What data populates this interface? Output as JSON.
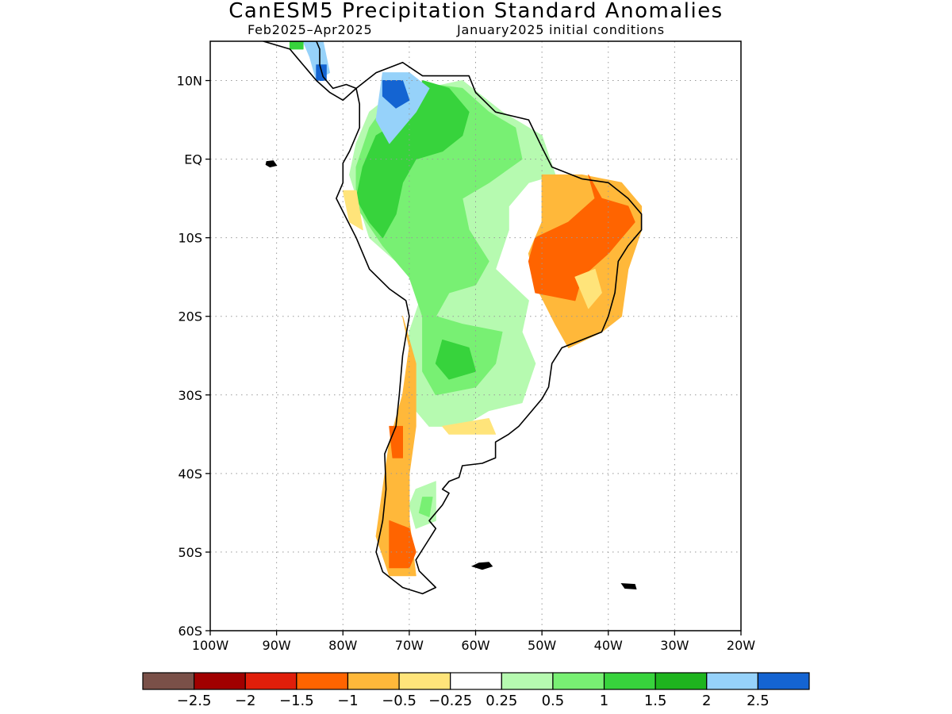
{
  "title": "CanESM5 Precipitation Standard Anomalies",
  "subtitle_left": "Feb2025–Apr2025",
  "subtitle_right": "January2025 initial conditions",
  "map": {
    "lon_range": [
      -100,
      -20
    ],
    "lat_range": [
      -60,
      15
    ],
    "lat_ticks": [
      {
        "value": 10,
        "label": "10N"
      },
      {
        "value": 0,
        "label": "EQ"
      },
      {
        "value": -10,
        "label": "10S"
      },
      {
        "value": -20,
        "label": "20S"
      },
      {
        "value": -30,
        "label": "30S"
      },
      {
        "value": -40,
        "label": "40S"
      },
      {
        "value": -50,
        "label": "50S"
      },
      {
        "value": -60,
        "label": "60S"
      }
    ],
    "lon_ticks": [
      {
        "value": -100,
        "label": "100W"
      },
      {
        "value": -90,
        "label": "90W"
      },
      {
        "value": -80,
        "label": "80W"
      },
      {
        "value": -70,
        "label": "70W"
      },
      {
        "value": -60,
        "label": "60W"
      },
      {
        "value": -50,
        "label": "50W"
      },
      {
        "value": -40,
        "label": "40W"
      },
      {
        "value": -30,
        "label": "30W"
      },
      {
        "value": -20,
        "label": "20W"
      }
    ],
    "grid": true
  },
  "colorbar": {
    "colors": [
      "#7a5048",
      "#a10000",
      "#e01e0a",
      "#ff6400",
      "#ffb83a",
      "#ffe47a",
      "#ffffff",
      "#b6fab0",
      "#78f073",
      "#37d33c",
      "#1eb41e",
      "#96d2fa",
      "#1464d2"
    ],
    "labels": [
      "−2.5",
      "−2",
      "−1.5",
      "−1",
      "−0.5",
      "−0.25",
      "0.25",
      "0.5",
      "1",
      "1.5",
      "2",
      "2.5"
    ]
  },
  "anomaly_regions": [
    {
      "level": 0.5,
      "color": "#b6fab0",
      "lonlat": [
        [
          -73,
          8
        ],
        [
          -62,
          10
        ],
        [
          -56,
          6
        ],
        [
          -50,
          3
        ],
        [
          -48,
          -2
        ],
        [
          -52,
          -3
        ],
        [
          -55,
          -6
        ],
        [
          -55,
          -9
        ],
        [
          -57,
          -14
        ],
        [
          -52,
          -18
        ],
        [
          -53,
          -22
        ],
        [
          -51,
          -26
        ],
        [
          -53,
          -31
        ],
        [
          -58,
          -32
        ],
        [
          -62,
          -34
        ],
        [
          -67,
          -34
        ],
        [
          -70,
          -31
        ],
        [
          -70,
          -22
        ],
        [
          -68,
          -17
        ],
        [
          -72,
          -13
        ],
        [
          -76,
          -10
        ],
        [
          -79,
          -2
        ],
        [
          -78,
          2
        ],
        [
          -76,
          6
        ]
      ]
    },
    {
      "level": 1.0,
      "color": "#78f073",
      "lonlat": [
        [
          -71,
          10
        ],
        [
          -62,
          9
        ],
        [
          -58,
          6
        ],
        [
          -54,
          4
        ],
        [
          -53,
          0
        ],
        [
          -58,
          -3
        ],
        [
          -62,
          -5
        ],
        [
          -61,
          -9
        ],
        [
          -58,
          -13
        ],
        [
          -60,
          -16
        ],
        [
          -64,
          -17
        ],
        [
          -66,
          -20
        ],
        [
          -62,
          -21
        ],
        [
          -56,
          -22
        ],
        [
          -57,
          -26
        ],
        [
          -60,
          -29
        ],
        [
          -66,
          -30
        ],
        [
          -68,
          -27
        ],
        [
          -68,
          -20
        ],
        [
          -70,
          -15
        ],
        [
          -74,
          -11
        ],
        [
          -78,
          -6
        ],
        [
          -78,
          -1
        ],
        [
          -76,
          4
        ]
      ]
    },
    {
      "level": 1.5,
      "color": "#37d33c",
      "lonlat": [
        [
          -68,
          10
        ],
        [
          -64,
          9
        ],
        [
          -61,
          6
        ],
        [
          -62,
          3
        ],
        [
          -65,
          1
        ],
        [
          -69,
          0
        ],
        [
          -71,
          -3
        ],
        [
          -72,
          -7
        ],
        [
          -74,
          -10
        ],
        [
          -76,
          -8
        ],
        [
          -78,
          -5
        ],
        [
          -77,
          -1
        ],
        [
          -75,
          3
        ],
        [
          -71,
          5
        ],
        [
          -69,
          7
        ]
      ]
    },
    {
      "level": 1.5,
      "color": "#37d33c",
      "lonlat": [
        [
          -65,
          -23
        ],
        [
          -61,
          -24
        ],
        [
          -60,
          -27
        ],
        [
          -64,
          -28
        ],
        [
          -66,
          -26
        ]
      ]
    },
    {
      "level": 0.5,
      "color": "#b6fab0",
      "lonlat": [
        [
          -69,
          -42
        ],
        [
          -66,
          -41
        ],
        [
          -66,
          -46
        ],
        [
          -69,
          -47
        ],
        [
          -70,
          -44
        ]
      ]
    },
    {
      "level": 1.0,
      "color": "#78f073",
      "lonlat": [
        [
          -68,
          -43
        ],
        [
          -66.5,
          -43
        ],
        [
          -67,
          -45.5
        ],
        [
          -68.5,
          -45
        ]
      ]
    },
    {
      "level": 2.0,
      "color": "#96d2fa",
      "lonlat": [
        [
          -74,
          11
        ],
        [
          -70,
          11
        ],
        [
          -67,
          9
        ],
        [
          -69,
          6
        ],
        [
          -71,
          4
        ],
        [
          -73,
          2
        ],
        [
          -75,
          5
        ]
      ]
    },
    {
      "level": 2.5,
      "color": "#1464d2",
      "lonlat": [
        [
          -74,
          10
        ],
        [
          -71,
          10
        ],
        [
          -70,
          7.5
        ],
        [
          -72,
          6.5
        ],
        [
          -74,
          8
        ]
      ]
    },
    {
      "level": 2.0,
      "color": "#96d2fa",
      "lonlat": [
        [
          -86,
          15
        ],
        [
          -83,
          15
        ],
        [
          -82,
          11
        ],
        [
          -84,
          10
        ],
        [
          -85,
          13
        ]
      ]
    },
    {
      "level": 2.5,
      "color": "#1464d2",
      "lonlat": [
        [
          -84,
          12
        ],
        [
          -82.5,
          12
        ],
        [
          -82.5,
          10
        ],
        [
          -84,
          10
        ]
      ]
    },
    {
      "level": 1.5,
      "color": "#37d33c",
      "lonlat": [
        [
          -88,
          15
        ],
        [
          -86,
          15
        ],
        [
          -86,
          14
        ],
        [
          -88,
          14
        ]
      ]
    },
    {
      "level": -0.5,
      "color": "#ffb83a",
      "lonlat": [
        [
          -50,
          -2
        ],
        [
          -44,
          -2
        ],
        [
          -38,
          -3
        ],
        [
          -35,
          -6
        ],
        [
          -35,
          -9
        ],
        [
          -37,
          -14
        ],
        [
          -38,
          -20
        ],
        [
          -41,
          -22
        ],
        [
          -46,
          -24
        ],
        [
          -48,
          -21
        ],
        [
          -51,
          -16
        ],
        [
          -52,
          -12
        ],
        [
          -50,
          -8
        ],
        [
          -50,
          -4
        ]
      ]
    },
    {
      "level": -1.0,
      "color": "#ff6400",
      "lonlat": [
        [
          -43,
          -2
        ],
        [
          -42,
          -5
        ],
        [
          -46,
          -8
        ],
        [
          -51,
          -10
        ],
        [
          -52,
          -13
        ],
        [
          -51,
          -17
        ],
        [
          -45,
          -18
        ],
        [
          -44,
          -15
        ],
        [
          -40,
          -12
        ],
        [
          -38,
          -10
        ],
        [
          -36,
          -8
        ],
        [
          -37,
          -6
        ],
        [
          -41,
          -5
        ]
      ]
    },
    {
      "level": -0.25,
      "color": "#ffe47a",
      "lonlat": [
        [
          -45,
          -15
        ],
        [
          -42,
          -14
        ],
        [
          -41,
          -17
        ],
        [
          -43,
          -19
        ]
      ]
    },
    {
      "level": -0.5,
      "color": "#ffb83a",
      "lonlat": [
        [
          -71,
          -20
        ],
        [
          -70,
          -24
        ],
        [
          -71,
          -30
        ],
        [
          -73,
          -36
        ],
        [
          -74,
          -42
        ],
        [
          -75,
          -48
        ],
        [
          -73,
          -53
        ],
        [
          -69,
          -53
        ],
        [
          -70,
          -46
        ],
        [
          -70,
          -40
        ],
        [
          -69,
          -34
        ],
        [
          -69,
          -26
        ]
      ]
    },
    {
      "level": -1.0,
      "color": "#ff6400",
      "lonlat": [
        [
          -73,
          -34
        ],
        [
          -71,
          -34
        ],
        [
          -71,
          -38
        ],
        [
          -72.5,
          -38
        ]
      ]
    },
    {
      "level": -1.0,
      "color": "#ff6400",
      "lonlat": [
        [
          -73,
          -46
        ],
        [
          -70,
          -47
        ],
        [
          -69,
          -50
        ],
        [
          -70,
          -52
        ],
        [
          -73,
          -52
        ]
      ]
    },
    {
      "level": -0.25,
      "color": "#ffe47a",
      "lonlat": [
        [
          -65,
          -34
        ],
        [
          -58,
          -33
        ],
        [
          -57,
          -35
        ],
        [
          -64,
          -35
        ]
      ]
    },
    {
      "level": -0.25,
      "color": "#ffe47a",
      "lonlat": [
        [
          -80,
          -4
        ],
        [
          -78,
          -4
        ],
        [
          -77,
          -9
        ],
        [
          -79,
          -8
        ]
      ]
    }
  ],
  "land_outlines": [
    {
      "lonlat": [
        [
          -78,
          9
        ],
        [
          -75,
          11
        ],
        [
          -71,
          12.3
        ],
        [
          -68,
          10.6
        ],
        [
          -64,
          10.6
        ],
        [
          -61,
          10.6
        ],
        [
          -60,
          8.5
        ],
        [
          -57,
          6
        ],
        [
          -52,
          5
        ],
        [
          -50,
          1.5
        ],
        [
          -48.5,
          -1
        ],
        [
          -44,
          -2.5
        ],
        [
          -40,
          -3
        ],
        [
          -37,
          -5
        ],
        [
          -35,
          -7
        ],
        [
          -35,
          -9
        ],
        [
          -37,
          -11
        ],
        [
          -38.5,
          -13
        ],
        [
          -39,
          -17
        ],
        [
          -40,
          -20
        ],
        [
          -41,
          -22
        ],
        [
          -44,
          -23
        ],
        [
          -47,
          -24
        ],
        [
          -48.5,
          -26
        ],
        [
          -49,
          -29
        ],
        [
          -50,
          -30.5
        ],
        [
          -52,
          -32.5
        ],
        [
          -53.5,
          -34
        ],
        [
          -55,
          -35
        ],
        [
          -57,
          -36
        ],
        [
          -57,
          -38
        ],
        [
          -59,
          -38.7
        ],
        [
          -62,
          -39
        ],
        [
          -62.5,
          -40.5
        ],
        [
          -64,
          -41
        ],
        [
          -65,
          -42
        ],
        [
          -64,
          -42.5
        ],
        [
          -65,
          -44
        ],
        [
          -67,
          -46
        ],
        [
          -66,
          -47
        ],
        [
          -67.5,
          -49
        ],
        [
          -69,
          -51
        ],
        [
          -68.5,
          -52.4
        ],
        [
          -66,
          -54.5
        ],
        [
          -68,
          -55.3
        ],
        [
          -71,
          -54.5
        ],
        [
          -74,
          -52.5
        ],
        [
          -75,
          -50
        ],
        [
          -74,
          -46
        ],
        [
          -73.5,
          -42
        ],
        [
          -73.7,
          -37.5
        ],
        [
          -72,
          -34
        ],
        [
          -71.5,
          -30
        ],
        [
          -71,
          -25
        ],
        [
          -70,
          -20
        ],
        [
          -70.5,
          -18
        ],
        [
          -73,
          -16.5
        ],
        [
          -76,
          -14
        ],
        [
          -78,
          -10
        ],
        [
          -79.5,
          -7.5
        ],
        [
          -81,
          -5
        ],
        [
          -80,
          -3
        ],
        [
          -80,
          -0.5
        ],
        [
          -79,
          1
        ],
        [
          -77.5,
          4
        ],
        [
          -77.5,
          7
        ],
        [
          -78,
          9
        ]
      ]
    },
    {
      "lonlat": [
        [
          -92,
          15
        ],
        [
          -88,
          14
        ],
        [
          -87,
          13
        ],
        [
          -85.5,
          11.5
        ],
        [
          -84,
          10
        ],
        [
          -82,
          8.5
        ],
        [
          -80,
          7.5
        ],
        [
          -78,
          9
        ],
        [
          -79.5,
          9.5
        ],
        [
          -81.5,
          9
        ],
        [
          -83,
          10.5
        ],
        [
          -83.5,
          12
        ],
        [
          -83.5,
          14
        ],
        [
          -84,
          15
        ]
      ]
    }
  ],
  "islands": [
    {
      "lonlat": [
        [
          -91.5,
          -0.3
        ],
        [
          -90.5,
          -0.2
        ],
        [
          -90,
          -0.8
        ],
        [
          -91,
          -1
        ],
        [
          -91.6,
          -0.7
        ]
      ]
    },
    {
      "lonlat": [
        [
          -59.5,
          -51.4
        ],
        [
          -58,
          -51.3
        ],
        [
          -57.5,
          -51.8
        ],
        [
          -59,
          -52.2
        ],
        [
          -60.5,
          -51.8
        ]
      ]
    },
    {
      "lonlat": [
        [
          -38,
          -54
        ],
        [
          -36,
          -54.1
        ],
        [
          -35.8,
          -54.7
        ],
        [
          -37.5,
          -54.6
        ]
      ]
    }
  ]
}
